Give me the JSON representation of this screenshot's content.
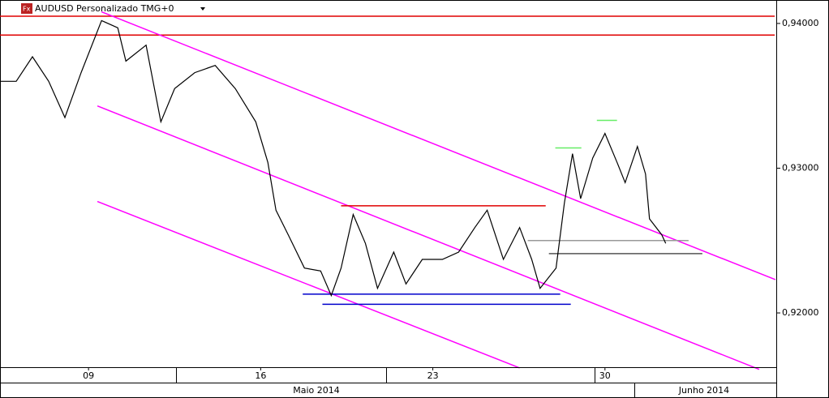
{
  "chart_data": {
    "type": "line",
    "title": "AUDUSD Personalizado TMG+0",
    "x": [
      5.4,
      6.06,
      6.72,
      7.38,
      8.04,
      8.7,
      9.53,
      10.19,
      10.52,
      11.34,
      11.94,
      12.5,
      13.32,
      14.15,
      14.97,
      15.8,
      16.29,
      16.62,
      17.12,
      17.78,
      18.44,
      18.87,
      19.27,
      19.76,
      20.26,
      20.75,
      21.41,
      21.91,
      22.57,
      23.39,
      24.05,
      24.71,
      25.21,
      25.87,
      26.53,
      27.02,
      27.36,
      28.01,
      28.35,
      28.68,
      29.01,
      29.5,
      30.0,
      30.49,
      30.82,
      31.32,
      31.65,
      31.81,
      32.31,
      32.47
    ],
    "series": [
      {
        "name": "AUDUSD",
        "color": "#000000",
        "values": [
          0.936,
          0.936,
          0.9377,
          0.936,
          0.9335,
          0.9366,
          0.9402,
          0.9397,
          0.9374,
          0.9385,
          0.9332,
          0.9355,
          0.9366,
          0.9371,
          0.9355,
          0.9332,
          0.9304,
          0.9271,
          0.9254,
          0.9231,
          0.9229,
          0.9212,
          0.9231,
          0.9268,
          0.9248,
          0.9217,
          0.9242,
          0.922,
          0.9237,
          0.9237,
          0.9242,
          0.9259,
          0.9271,
          0.9237,
          0.9259,
          0.9237,
          0.9217,
          0.9231,
          0.9276,
          0.931,
          0.9279,
          0.9307,
          0.9324,
          0.9304,
          0.929,
          0.9315,
          0.9296,
          0.9265,
          0.9254,
          0.9248
        ]
      }
    ],
    "xlim": [
      5.4,
      36.9
    ],
    "xticks": [
      {
        "value": 9,
        "label": "09"
      },
      16,
      23,
      30
    ],
    "x_period_labels": [
      "Maio 2014",
      "Junho 2014"
    ],
    "ylim": [
      0.91625,
      0.94162
    ],
    "yticks": [
      {
        "value": 0.92,
        "label": "0,92000"
      },
      {
        "value": 0.93,
        "label": "0,93000"
      },
      {
        "value": 0.94,
        "label": "0,94000"
      }
    ],
    "drawings": [
      {
        "color": "#e00000",
        "x": [
          5.4,
          36.9
        ],
        "y": [
          0.9405,
          0.9405
        ]
      },
      {
        "color": "#e00000",
        "x": [
          5.4,
          36.9
        ],
        "y": [
          0.9392,
          0.9392
        ]
      },
      {
        "color": "#ff00ff",
        "x": [
          9.53,
          36.93
        ],
        "y": [
          0.9408,
          0.9223
        ]
      },
      {
        "color": "#ff00ff",
        "x": [
          9.36,
          36.27
        ],
        "y": [
          0.9343,
          0.9161
        ]
      },
      {
        "color": "#ff00ff",
        "x": [
          9.36,
          26.53
        ],
        "y": [
          0.9277,
          0.9162
        ]
      },
      {
        "color": "#e00000",
        "x": [
          19.27,
          27.59
        ],
        "y": [
          0.9274,
          0.9274
        ]
      },
      {
        "color": "#0000cc",
        "x": [
          17.71,
          28.18
        ],
        "y": [
          0.9213,
          0.9213
        ]
      },
      {
        "color": "#0000cc",
        "x": [
          18.51,
          28.61
        ],
        "y": [
          0.9206,
          0.9206
        ]
      },
      {
        "color": "#999999",
        "x": [
          26.86,
          33.4
        ],
        "y": [
          0.925,
          0.925
        ]
      },
      {
        "color": "#555555",
        "x": [
          27.72,
          33.96
        ],
        "y": [
          0.9241,
          0.9241
        ]
      },
      {
        "color": "#66ee66",
        "x": [
          27.98,
          29.04
        ],
        "y": [
          0.9314,
          0.9314
        ]
      },
      {
        "color": "#66ee66",
        "x": [
          29.67,
          30.49
        ],
        "y": [
          0.9333,
          0.9333
        ]
      }
    ]
  }
}
